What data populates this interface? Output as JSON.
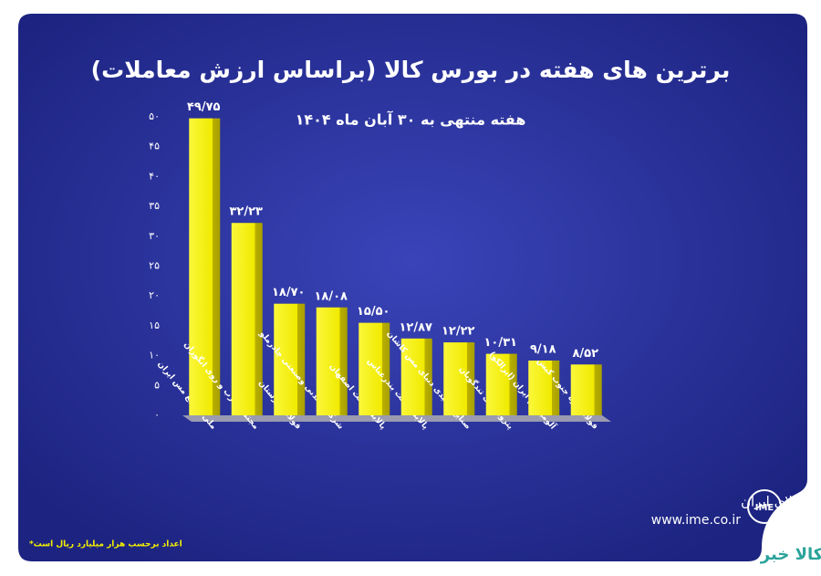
{
  "chart_data": {
    "type": "bar",
    "title": "برترین های هفته در بورس کالا (براساس ارزش معاملات)",
    "subtitle": "هفته منتهی به ۳۰ آبان ماه ۱۴۰۴",
    "categories": [
      "ملی صنایع مس ایران",
      "مجتمع سرب و روی انگوران",
      "فولاد خوزستان",
      "شرکت معدنی وصنعتی چادرملو",
      "پالایش نفت اصفهان",
      "پالایش نفت بندرعباس",
      "صنایع تولیدی دنیای مس کاشان",
      "پتروشیمی تندگویان",
      "آلومینیوم ایران (ایرالکو)",
      "فولاد کاوه جنوب کیش"
    ],
    "values": [
      49.75,
      32.23,
      18.7,
      18.08,
      15.5,
      12.87,
      12.22,
      10.31,
      9.18,
      8.52
    ],
    "value_labels": [
      "۴۹/۷۵",
      "۳۲/۲۳",
      "۱۸/۷۰",
      "۱۸/۰۸",
      "۱۵/۵۰",
      "۱۲/۸۷",
      "۱۲/۲۲",
      "۱۰/۳۱",
      "۹/۱۸",
      "۸/۵۲"
    ],
    "color": "#f5f000",
    "ylim": [
      0,
      50
    ],
    "yticks": [
      {
        "value": 0,
        "label": "۰"
      },
      {
        "value": 5,
        "label": "۵"
      },
      {
        "value": 10,
        "label": "۱۰"
      },
      {
        "value": 15,
        "label": "۱۵"
      },
      {
        "value": 20,
        "label": "۲۰"
      },
      {
        "value": 25,
        "label": "۲۵"
      },
      {
        "value": 30,
        "label": "۳۰"
      },
      {
        "value": 35,
        "label": "۳۵"
      },
      {
        "value": 40,
        "label": "۴۰"
      },
      {
        "value": 45,
        "label": "۴۵"
      },
      {
        "value": 50,
        "label": "۵۰"
      }
    ],
    "footnote": "*اعداد برحسب هزار میلیارد ریال است",
    "source": "بورس کالای ایران",
    "website": "www.ime.co.ir",
    "brand": "کالا خبر"
  }
}
